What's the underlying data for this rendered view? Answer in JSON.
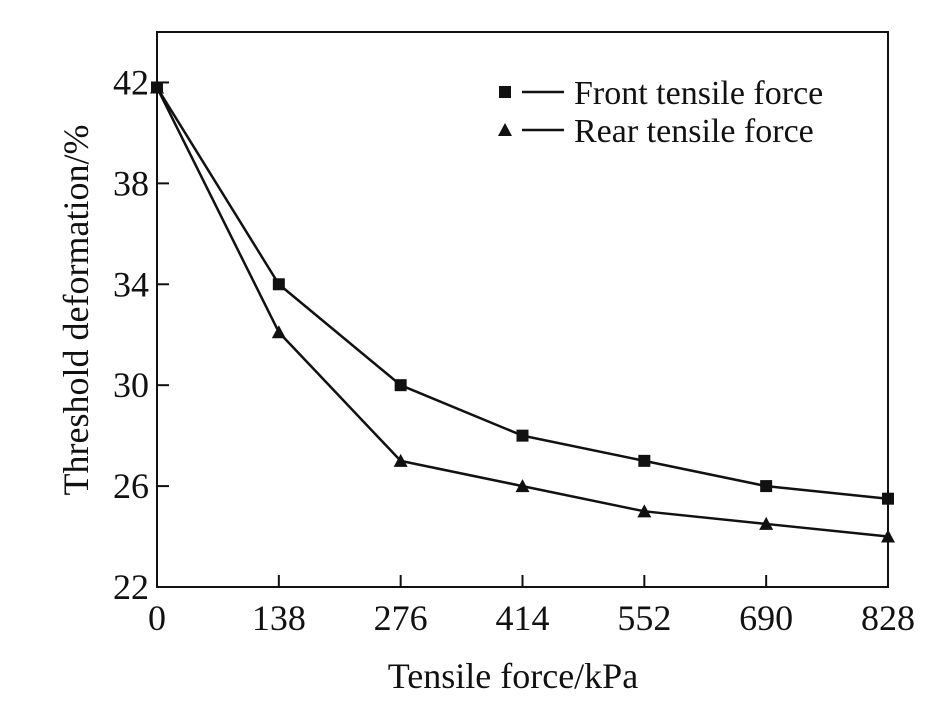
{
  "chart_data": {
    "type": "line",
    "xlabel": "Tensile force/kPa",
    "ylabel": "Threshold deformation/%",
    "x_ticks": [
      0,
      138,
      276,
      414,
      552,
      690,
      828
    ],
    "y_ticks": [
      22,
      26,
      30,
      34,
      38,
      42
    ],
    "xlim": [
      0,
      828
    ],
    "ylim": [
      22,
      44
    ],
    "grid": false,
    "legend_position": "top-right",
    "series": [
      {
        "name": "Front tensile force",
        "marker": "square",
        "x": [
          0,
          138,
          276,
          414,
          552,
          690,
          828
        ],
        "y": [
          41.8,
          34.0,
          30.0,
          28.0,
          27.0,
          26.0,
          25.5
        ]
      },
      {
        "name": "Rear tensile force",
        "marker": "triangle",
        "x": [
          0,
          138,
          276,
          414,
          552,
          690,
          828
        ],
        "y": [
          41.8,
          32.1,
          27.0,
          26.0,
          25.0,
          24.5,
          24.0
        ]
      }
    ],
    "colors": {
      "line": "#111111",
      "axis": "#111111",
      "background": "#ffffff"
    }
  }
}
